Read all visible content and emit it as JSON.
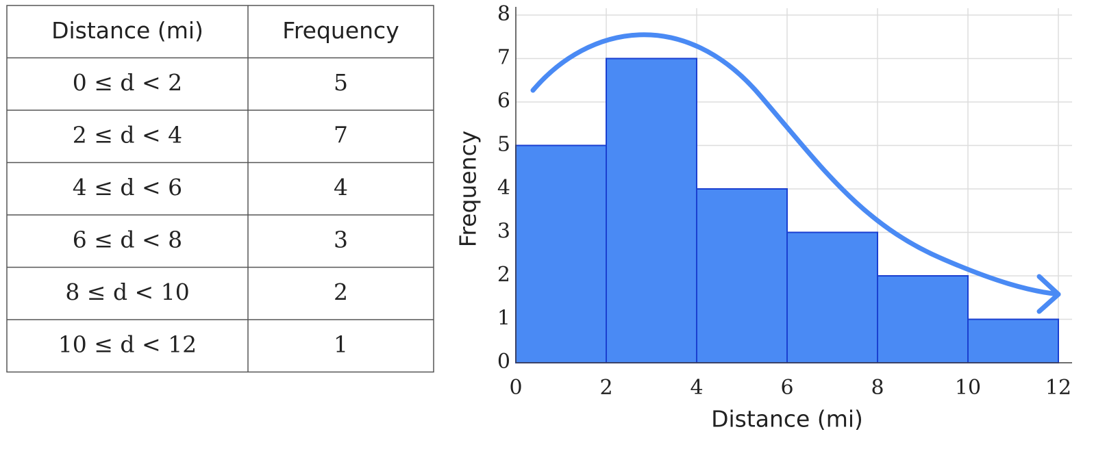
{
  "table": {
    "headers": [
      "Distance (mi)",
      "Frequency"
    ],
    "rows": [
      [
        "0 ≤ d < 2",
        5
      ],
      [
        "2 ≤ d < 4",
        7
      ],
      [
        "4 ≤ d < 6",
        4
      ],
      [
        "6 ≤ d < 8",
        3
      ],
      [
        "8 ≤ d < 10",
        2
      ],
      [
        "10 ≤ d < 12",
        1
      ]
    ]
  },
  "chart_data": {
    "type": "histogram",
    "xlabel": "Distance (mi)",
    "ylabel": "Frequency",
    "bins": [
      0,
      2,
      4,
      6,
      8,
      10,
      12
    ],
    "values": [
      5,
      7,
      4,
      3,
      2,
      1
    ],
    "color": "#4a8af4",
    "xlim": [
      0,
      12
    ],
    "ylim": [
      0,
      8
    ],
    "xticks": [
      0,
      2,
      4,
      6,
      8,
      10,
      12
    ],
    "yticks": [
      0,
      1,
      2,
      3,
      4,
      5,
      6,
      7,
      8
    ],
    "grid": true
  }
}
